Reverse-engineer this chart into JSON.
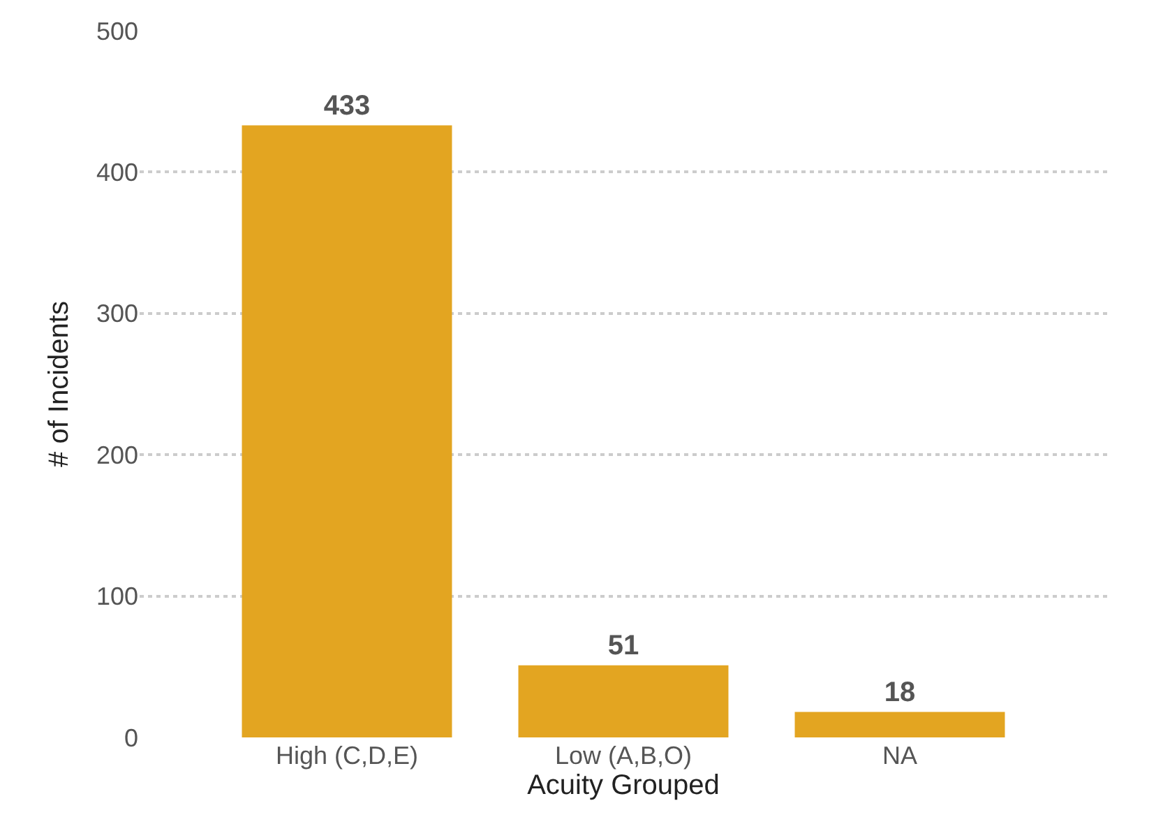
{
  "chart_data": {
    "type": "bar",
    "xlabel": "Acuity Grouped",
    "ylabel": "# of Incidents",
    "categories": [
      "High (C,D,E)",
      "Low (A,B,O)",
      "NA"
    ],
    "values": [
      433,
      51,
      18
    ],
    "color": "#e3a521",
    "ylim": [
      0,
      500
    ],
    "yticks": [
      0,
      100,
      200,
      300,
      400,
      500
    ],
    "grid": "y",
    "data_labels": true
  }
}
